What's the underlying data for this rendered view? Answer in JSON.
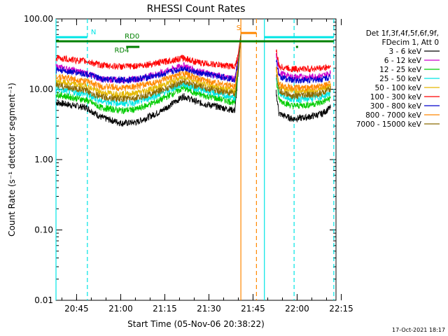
{
  "chart_data": {
    "type": "line",
    "title": "RHESSI Count Rates",
    "xlabel": "Start Time (05-Nov-06 20:38:22)",
    "ylabel": "Count Rate (s⁻¹ detector segment⁻¹)",
    "y_scale": "log",
    "ylim": [
      0.01,
      100.0
    ],
    "y_ticks": [
      "0.01",
      "0.10",
      "1.00",
      "10.00",
      "100.00"
    ],
    "xlim_minutes": [
      -0.37,
      94.85
    ],
    "x_ticks": [
      "20:45",
      "21:00",
      "21:15",
      "21:30",
      "21:45",
      "22:00",
      "22:15"
    ],
    "legend_placement": "right",
    "legend_header": [
      "Det 1f,3f,4f,5f,6f,9f,",
      "FDecim 1, Att 0"
    ],
    "series": [
      {
        "name": "3 - 6 keV",
        "color": "#000000",
        "x": [
          -0.37,
          10,
          15,
          22,
          27,
          35,
          43,
          48,
          60.5,
          61.5,
          62.5,
          63.3,
          74.5,
          75.5,
          80,
          85,
          90,
          93
        ],
        "values": [
          6.5,
          5.5,
          4.0,
          3.3,
          3.4,
          4.8,
          8.0,
          6.5,
          5.0,
          15,
          60,
          null,
          9,
          4.5,
          3.8,
          4.0,
          4.5,
          5.5
        ]
      },
      {
        "name": "6 - 12 keV",
        "color": "#cc00cc",
        "x": [
          -0.37,
          10,
          15,
          22,
          27,
          35,
          43,
          48,
          60.5,
          61.5,
          62.5,
          63.3,
          74.5,
          75.5,
          80,
          85,
          90,
          93
        ],
        "values": [
          21,
          17,
          14,
          13.5,
          14,
          17,
          22,
          18,
          14,
          25,
          60,
          null,
          30,
          17,
          15,
          15,
          15.5,
          17
        ]
      },
      {
        "name": "12 - 25 keV",
        "color": "#00cc00",
        "x": [
          -0.37,
          10,
          15,
          22,
          27,
          35,
          43,
          48,
          60.5,
          61.5,
          62.5,
          63.3,
          74.5,
          75.5,
          80,
          85,
          90,
          93
        ],
        "values": [
          8.5,
          7.0,
          5.5,
          5.0,
          5.2,
          7.0,
          10.5,
          8.5,
          6.5,
          18,
          60,
          null,
          14,
          7.0,
          5.8,
          6.0,
          6.5,
          7.5
        ]
      },
      {
        "name": "25 - 50 keV",
        "color": "#00e5e5",
        "x": [
          -0.37,
          10,
          15,
          22,
          27,
          35,
          43,
          48,
          60.5,
          61.5,
          62.5,
          63.3,
          74.5,
          75.5,
          80,
          85,
          90,
          93
        ],
        "values": [
          10,
          8.5,
          6.8,
          6.3,
          6.5,
          8.5,
          12,
          10,
          7.5,
          20,
          60,
          null,
          16,
          8.5,
          7.2,
          7.3,
          7.8,
          9.0
        ]
      },
      {
        "name": "50 - 100 keV",
        "color": "#e5b800",
        "x": [
          -0.37,
          10,
          15,
          22,
          27,
          35,
          43,
          48,
          60.5,
          61.5,
          62.5,
          63.3,
          74.5,
          75.5,
          80,
          85,
          90,
          93
        ],
        "values": [
          13,
          11,
          9.0,
          8.5,
          8.8,
          11,
          15,
          12.5,
          9.5,
          22,
          60,
          null,
          20,
          11,
          9.5,
          9.5,
          10,
          11
        ]
      },
      {
        "name": "100 - 300 keV",
        "color": "#ff0000",
        "x": [
          -0.37,
          10,
          15,
          22,
          27,
          35,
          43,
          48,
          60.5,
          61.5,
          62.5,
          63.3,
          74.5,
          75.5,
          80,
          85,
          90,
          93
        ],
        "values": [
          28,
          25,
          22,
          21,
          21.5,
          24,
          28,
          24,
          21,
          30,
          60,
          null,
          36,
          21,
          19.5,
          19.5,
          20,
          21
        ]
      },
      {
        "name": "300 - 800 keV",
        "color": "#0000cc",
        "x": [
          -0.37,
          10,
          15,
          22,
          27,
          35,
          43,
          48,
          60.5,
          61.5,
          62.5,
          63.3,
          74.5,
          75.5,
          80,
          85,
          90,
          93
        ],
        "values": [
          19,
          16.5,
          14,
          13.5,
          14,
          16,
          20,
          17,
          14,
          24,
          60,
          null,
          27,
          15,
          13.5,
          13.5,
          14,
          15
        ]
      },
      {
        "name": "800 - 7000 keV",
        "color": "#ff8800",
        "x": [
          -0.37,
          10,
          15,
          22,
          27,
          35,
          43,
          48,
          60.5,
          61.5,
          62.5,
          63.3,
          74.5,
          75.5,
          80,
          85,
          90,
          93
        ],
        "values": [
          15.5,
          13,
          11,
          10.5,
          11,
          13,
          17,
          14,
          11,
          22,
          60,
          null,
          22,
          11.5,
          10.5,
          10.5,
          11,
          12
        ]
      },
      {
        "name": "7000 - 15000 keV",
        "color": "#8b6a00",
        "x": [
          -0.37,
          10,
          15,
          22,
          27,
          35,
          43,
          48,
          60.5,
          61.5,
          62.5,
          63.3,
          74.5,
          75.5,
          80,
          85,
          90,
          93
        ],
        "values": [
          11.5,
          9.5,
          7.8,
          7.3,
          7.5,
          9.5,
          13,
          11,
          8.5,
          19,
          60,
          null,
          17,
          9.5,
          8.0,
          8.2,
          8.8,
          10
        ]
      }
    ],
    "vertical_markers": [
      {
        "x": -0.37,
        "color": "#00e5e5",
        "style": "solid"
      },
      {
        "x": 10.3,
        "color": "#00e5e5",
        "style": "dashed"
      },
      {
        "x": 62.5,
        "color": "#ff8800",
        "style": "solid"
      },
      {
        "x": 67.8,
        "color": "#ff8800",
        "style": "dashed"
      },
      {
        "x": 70.5,
        "color": "#00e5e5",
        "style": "solid"
      },
      {
        "x": 80.6,
        "color": "#00e5e5",
        "style": "dashed"
      },
      {
        "x": 94.1,
        "color": "#00e5e5",
        "style": "dashed"
      }
    ],
    "annotation_bars": [
      {
        "label": "N",
        "color": "#00e5e5",
        "y": 55,
        "segments": [
          [
            -0.37,
            10.3
          ],
          [
            70.5,
            94.1
          ]
        ],
        "label_x": 11.5
      },
      {
        "label": "S",
        "color": "#ff8800",
        "y": 63,
        "segments": [
          [
            62.5,
            67.8
          ]
        ],
        "label_x": 61.0
      },
      {
        "label": "RD0",
        "color": "#008000",
        "y": 48,
        "segments": [
          [
            -0.37,
            94.1
          ]
        ],
        "label_x": 23.0
      },
      {
        "label": "RD4",
        "color": "#008000",
        "y": 40,
        "segments": [
          [
            23.5,
            28.0
          ]
        ],
        "label_x": 19.5
      }
    ],
    "timestamp": "17-Oct-2021 18:17"
  }
}
